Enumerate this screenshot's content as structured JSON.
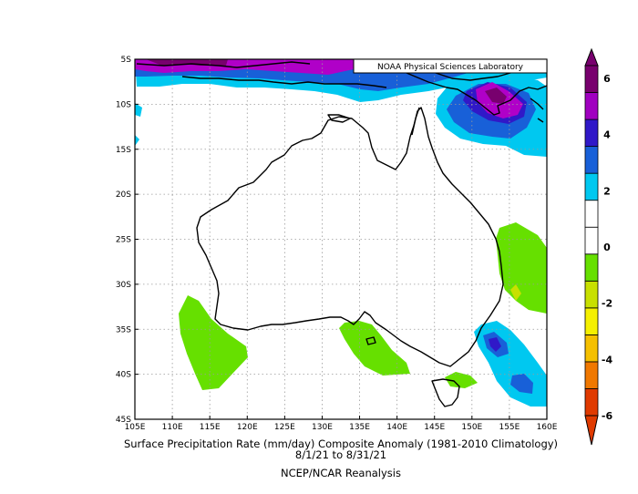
{
  "map": {
    "credit": "NOAA Physical Sciences Laboratory",
    "title_line1": "Surface Precipitation Rate (mm/day) Composite Anomaly (1981-2010 Climatology)",
    "title_line2": "8/1/21   to 8/31/21",
    "title_line3": "NCEP/NCAR Reanalysis",
    "lon_labels": [
      "105E",
      "110E",
      "115E",
      "120E",
      "125E",
      "130E",
      "135E",
      "140E",
      "145E",
      "150E",
      "155E",
      "160E"
    ],
    "lat_labels": [
      "5S",
      "10S",
      "15S",
      "20S",
      "25S",
      "30S",
      "35S",
      "40S",
      "45S"
    ],
    "colorbar": {
      "colors": [
        "#e03a00",
        "#f07800",
        "#f5c000",
        "#f5f000",
        "#c8e000",
        "#66e000",
        "#ffffff",
        "#ffffff",
        "#00c8f0",
        "#1860d8",
        "#3018c8",
        "#a000c0",
        "#78006e"
      ],
      "tick_labels": [
        "6",
        "4",
        "2",
        "0",
        "-2",
        "-4",
        "-6"
      ]
    },
    "colors": {
      "light_blue": "#00c8f0",
      "blue": "#1860d8",
      "indigo": "#3018c8",
      "magenta": "#b000c8",
      "purple": "#78006e",
      "green": "#66e000",
      "yellow_green": "#c8e000",
      "coast": "#000000",
      "grid": "#9a9a9a"
    }
  }
}
